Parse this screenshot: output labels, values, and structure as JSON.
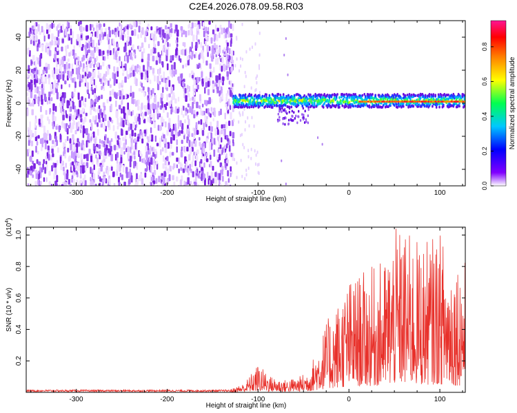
{
  "title": "C2E4.2026.078.09.58.R03",
  "chart_data": [
    {
      "type": "heatmap",
      "title": "C2E4.2026.078.09.58.R03",
      "xlabel": "Height of straight line (km)",
      "ylabel": "Frequency (Hz)",
      "xlim": [
        -355,
        128
      ],
      "ylim": [
        -50,
        50
      ],
      "x_ticks": [
        -300,
        -200,
        -100,
        0,
        100
      ],
      "y_ticks": [
        -40,
        -20,
        0,
        20,
        40
      ],
      "x_tick_labels": [
        "-300",
        "-200",
        "-100",
        "0",
        "100"
      ],
      "y_tick_labels": [
        "-40",
        "-20",
        "0",
        "20",
        "40"
      ],
      "regions": [
        {
          "name": "noise",
          "x_range": [
            -355,
            -128
          ],
          "freq_range": [
            -50,
            50
          ],
          "amplitude": "low (0.0-0.15)"
        },
        {
          "name": "signal band",
          "x_range": [
            -128,
            128
          ],
          "freq_center": 1.5,
          "freq_width": 8,
          "amplitude": "0.3-0.95"
        },
        {
          "name": "branch",
          "x_range": [
            -80,
            -45
          ],
          "freq_range": [
            -12,
            0
          ],
          "amplitude": "low"
        }
      ],
      "colorbar": {
        "label": "Normalized spectral amplitude",
        "range": [
          0.0,
          0.95
        ],
        "ticks": [
          0.0,
          0.2,
          0.4,
          0.6,
          0.8
        ],
        "tick_labels": [
          "0.0",
          "0.2",
          "0.4",
          "0.6",
          "0.8"
        ],
        "colors": [
          "#ffffff",
          "#8000ff",
          "#0000ff",
          "#00c8ff",
          "#00ff50",
          "#ffff00",
          "#ff8000",
          "#ff0000",
          "#ff1493"
        ]
      }
    },
    {
      "type": "line",
      "xlabel": "Height of straight line (km)",
      "ylabel": "SNR (10 * v/v)",
      "y_multiplier": "(x10",
      "y_multiplier_exp": "4",
      "y_multiplier_close": ")",
      "xlim": [
        -355,
        128
      ],
      "ylim": [
        0,
        1.05
      ],
      "x_ticks": [
        -300,
        -200,
        -100,
        0,
        100
      ],
      "y_ticks": [
        0.2,
        0.4,
        0.6,
        0.8,
        1.0
      ],
      "x_tick_labels": [
        "-300",
        "-200",
        "-100",
        "0",
        "100"
      ],
      "y_tick_labels": [
        "0.2",
        "0.4",
        "0.6",
        "0.8",
        "1.0"
      ],
      "color": "#e8302a",
      "series": [
        {
          "name": "SNR envelope",
          "x": [
            -355,
            -300,
            -200,
            -130,
            -115,
            -100,
            -85,
            -70,
            -55,
            -45,
            -35,
            -25,
            -15,
            0,
            20,
            40,
            50,
            60,
            80,
            100,
            110,
            128
          ],
          "y_max": [
            0.02,
            0.02,
            0.02,
            0.02,
            0.06,
            0.18,
            0.1,
            0.08,
            0.1,
            0.14,
            0.28,
            0.45,
            0.55,
            0.72,
            0.78,
            0.85,
            1.04,
            1.04,
            0.95,
            1.02,
            0.9,
            0.85
          ]
        }
      ]
    }
  ]
}
